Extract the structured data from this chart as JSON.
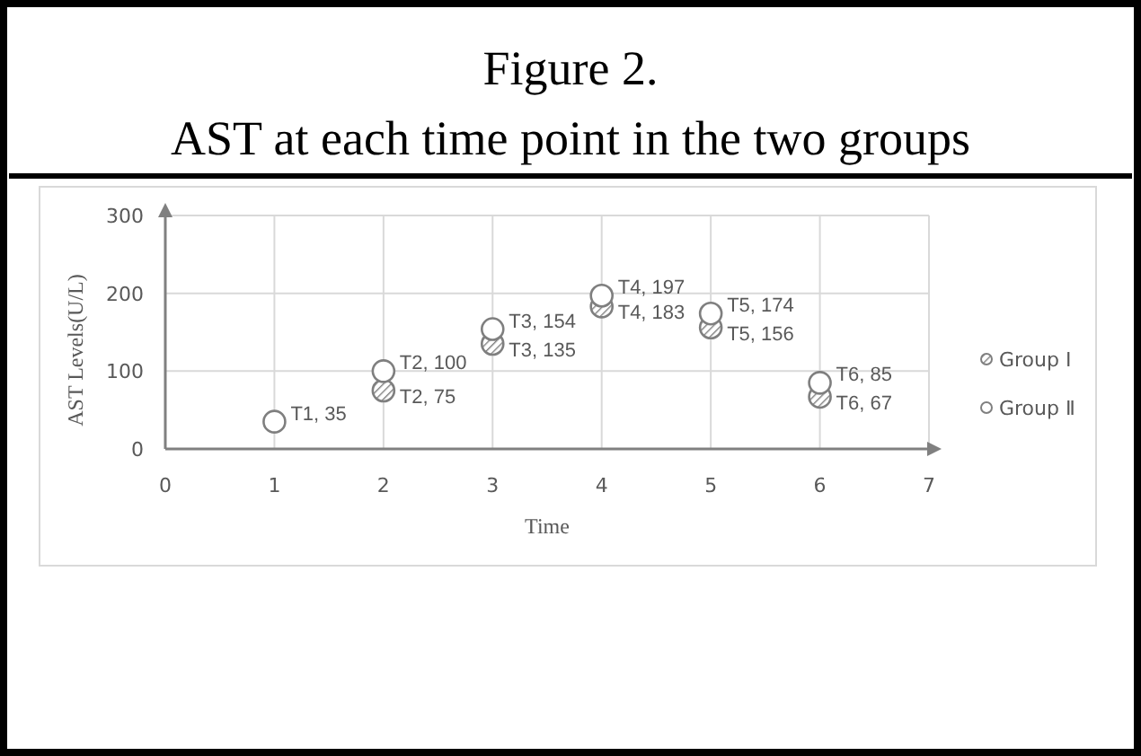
{
  "chart_data": {
    "type": "scatter",
    "title": "Figure 2.",
    "subtitle": "AST at each time point in the two groups",
    "xlabel": "Time",
    "ylabel": "AST Levels(U/L)",
    "series": [
      {
        "name": "Group Ⅰ",
        "color": "#7f7f7f",
        "x": [
          2,
          3,
          4,
          5,
          6
        ],
        "values": [
          75,
          135,
          183,
          156,
          67
        ],
        "value_labels": [
          "T2, 75",
          "T3, 135",
          "T4, 183",
          "T5, 156",
          "T6, 67"
        ]
      },
      {
        "name": "Group Ⅱ",
        "color": "#7f7f7f",
        "x": [
          1,
          2,
          3,
          4,
          5,
          6
        ],
        "values": [
          35,
          100,
          154,
          197,
          174,
          85
        ],
        "value_labels": [
          "T1, 35",
          "T2, 100",
          "T3, 154",
          "T4, 197",
          "T5, 174",
          "T6, 85"
        ]
      }
    ],
    "xlim": [
      0,
      7
    ],
    "xticks": [
      0,
      1,
      2,
      3,
      4,
      5,
      6,
      7
    ],
    "ylim": [
      0,
      300
    ],
    "yticks": [
      0,
      100,
      200,
      300
    ],
    "grid": true,
    "legend": "right",
    "marker": "circle"
  }
}
